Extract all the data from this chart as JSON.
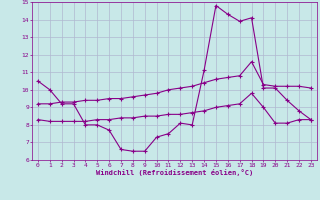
{
  "xlabel": "Windchill (Refroidissement éolien,°C)",
  "background_color": "#c8e8e8",
  "grid_color": "#b0b8d0",
  "line_color": "#880088",
  "xlim": [
    -0.5,
    23.5
  ],
  "ylim": [
    6,
    15
  ],
  "x_ticks": [
    0,
    1,
    2,
    3,
    4,
    5,
    6,
    7,
    8,
    9,
    10,
    11,
    12,
    13,
    14,
    15,
    16,
    17,
    18,
    19,
    20,
    21,
    22,
    23
  ],
  "y_ticks": [
    6,
    7,
    8,
    9,
    10,
    11,
    12,
    13,
    14,
    15
  ],
  "line1_x": [
    0,
    1,
    2,
    3,
    4,
    5,
    6,
    7,
    8,
    9,
    10,
    11,
    12,
    13,
    14,
    15,
    16,
    17,
    18,
    19,
    20,
    21,
    22,
    23
  ],
  "line1_y": [
    10.5,
    10.0,
    9.2,
    9.2,
    8.0,
    8.0,
    7.7,
    6.6,
    6.5,
    6.5,
    7.3,
    7.5,
    8.1,
    8.0,
    11.1,
    14.8,
    14.3,
    13.9,
    14.1,
    10.1,
    10.1,
    9.4,
    8.8,
    8.3
  ],
  "line2_x": [
    0,
    1,
    2,
    3,
    4,
    5,
    6,
    7,
    8,
    9,
    10,
    11,
    12,
    13,
    14,
    15,
    16,
    17,
    18,
    19,
    20,
    21,
    22,
    23
  ],
  "line2_y": [
    9.2,
    9.2,
    9.3,
    9.3,
    9.4,
    9.4,
    9.5,
    9.5,
    9.6,
    9.7,
    9.8,
    10.0,
    10.1,
    10.2,
    10.4,
    10.6,
    10.7,
    10.8,
    11.6,
    10.3,
    10.2,
    10.2,
    10.2,
    10.1
  ],
  "line3_x": [
    0,
    1,
    2,
    3,
    4,
    5,
    6,
    7,
    8,
    9,
    10,
    11,
    12,
    13,
    14,
    15,
    16,
    17,
    18,
    19,
    20,
    21,
    22,
    23
  ],
  "line3_y": [
    8.3,
    8.2,
    8.2,
    8.2,
    8.2,
    8.3,
    8.3,
    8.4,
    8.4,
    8.5,
    8.5,
    8.6,
    8.6,
    8.7,
    8.8,
    9.0,
    9.1,
    9.2,
    9.8,
    9.0,
    8.1,
    8.1,
    8.3,
    8.3
  ]
}
